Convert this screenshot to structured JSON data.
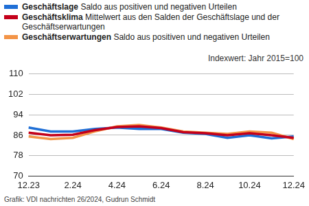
{
  "chart_data": {
    "type": "line",
    "annotation": "Indexwert: Jahr 2015=100",
    "source": "Grafik: VDI nachrichten 26/2024, Gudrun Schmidt",
    "categories": [
      "12.23",
      null,
      "2.24",
      null,
      "4.24",
      null,
      "6.24",
      null,
      "8.24",
      null,
      "10.24",
      null,
      "12.24"
    ],
    "series": [
      {
        "name": "Geschäftslage",
        "description": "Saldo aus positiven und negativen Urteilen",
        "color": "#1f6fd6",
        "values": [
          89,
          87.5,
          87.5,
          88.5,
          89,
          88.5,
          88.5,
          87,
          86.5,
          85,
          86,
          84.8,
          85.5
        ]
      },
      {
        "name": "Geschäftsklima",
        "description": "Mittelwert aus den Salden der Geschäftslage und der Geschäftserwartungen",
        "color": "#c4001a",
        "values": [
          87,
          86,
          86.2,
          88,
          89.2,
          89.5,
          88.8,
          87.2,
          86.8,
          86,
          86.8,
          86,
          85
        ]
      },
      {
        "name": "Geschäftserwartungen",
        "description": "Saldo aus positiven und negativen Urteilen",
        "color": "#f39447",
        "values": [
          85.5,
          84.5,
          85,
          87.5,
          89.5,
          90,
          89,
          87.5,
          87,
          86.5,
          87.5,
          87,
          84.5
        ]
      }
    ],
    "ylim": [
      70,
      110
    ],
    "yticks": [
      70,
      78,
      86,
      94,
      102,
      110
    ],
    "grid": true
  }
}
